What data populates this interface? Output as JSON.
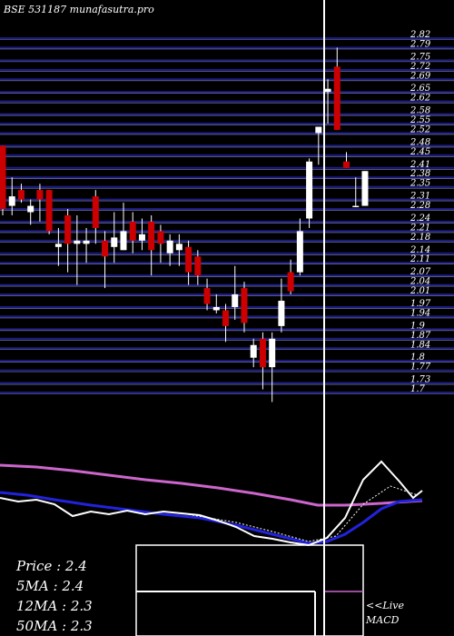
{
  "chart_data": {
    "type": "candlestick",
    "title": "BSE 531187 munafasutra.pro",
    "open": [
      2.48,
      2.29,
      2.34,
      2.27,
      2.34,
      2.34,
      2.16,
      2.26,
      2.17,
      2.17,
      2.32,
      2.18,
      2.16,
      2.15,
      2.24,
      2.18,
      2.24,
      2.21,
      2.14,
      2.15,
      2.16,
      2.13,
      2.03,
      1.96,
      1.96,
      1.97,
      2.03,
      1.81,
      1.87,
      1.78,
      1.91,
      2.08,
      2.08,
      2.25,
      2.52,
      2.65,
      2.73,
      2.43,
      2.29,
      2.29
    ],
    "high": [
      2.48,
      2.38,
      2.36,
      2.31,
      2.36,
      2.34,
      2.22,
      2.28,
      2.26,
      2.22,
      2.34,
      2.21,
      2.27,
      2.3,
      2.27,
      2.25,
      2.26,
      2.23,
      2.2,
      2.2,
      2.18,
      2.15,
      2.06,
      2.01,
      1.98,
      2.1,
      2.05,
      1.87,
      1.89,
      1.89,
      2.06,
      2.12,
      2.25,
      2.44,
      2.54,
      2.69,
      2.79,
      2.46,
      2.38,
      2.4
    ],
    "low": [
      2.26,
      2.26,
      2.3,
      2.23,
      2.24,
      2.2,
      2.1,
      2.08,
      2.04,
      2.11,
      2.17,
      2.03,
      2.11,
      2.15,
      2.14,
      2.15,
      2.07,
      2.11,
      2.1,
      2.1,
      2.04,
      2.04,
      1.96,
      1.95,
      1.86,
      1.93,
      1.89,
      1.78,
      1.71,
      1.67,
      1.89,
      2.01,
      2.07,
      2.22,
      2.42,
      2.55,
      2.53,
      2.41,
      2.29,
      2.29
    ],
    "close": [
      2.28,
      2.32,
      2.31,
      2.29,
      2.31,
      2.21,
      2.17,
      2.17,
      2.18,
      2.18,
      2.22,
      2.13,
      2.19,
      2.21,
      2.18,
      2.2,
      2.15,
      2.17,
      2.18,
      2.17,
      2.08,
      2.07,
      1.98,
      1.97,
      1.91,
      2.01,
      1.92,
      1.85,
      1.78,
      1.87,
      1.99,
      2.02,
      2.21,
      2.43,
      2.54,
      2.66,
      2.53,
      2.41,
      2.29,
      2.4
    ],
    "up_color": "#ffffff",
    "down_color": "#cc0000",
    "ylim": [
      1.7,
      2.82
    ],
    "yticks": [
      2.82,
      2.79,
      2.75,
      2.72,
      2.69,
      2.65,
      2.62,
      2.58,
      2.55,
      2.52,
      2.48,
      2.45,
      2.41,
      2.38,
      2.35,
      2.31,
      2.28,
      2.24,
      2.21,
      2.18,
      2.14,
      2.11,
      2.07,
      2.04,
      2.01,
      1.97,
      1.94,
      1.9,
      1.87,
      1.84,
      1.8,
      1.77,
      1.73,
      1.7
    ],
    "grid": true,
    "annotations": [
      "Price  : 2.4",
      "5MA : 2.4",
      "12MA : 2.3",
      "50MA : 2.3"
    ],
    "live_label": "<<Live",
    "indicator_label": "MACD"
  }
}
